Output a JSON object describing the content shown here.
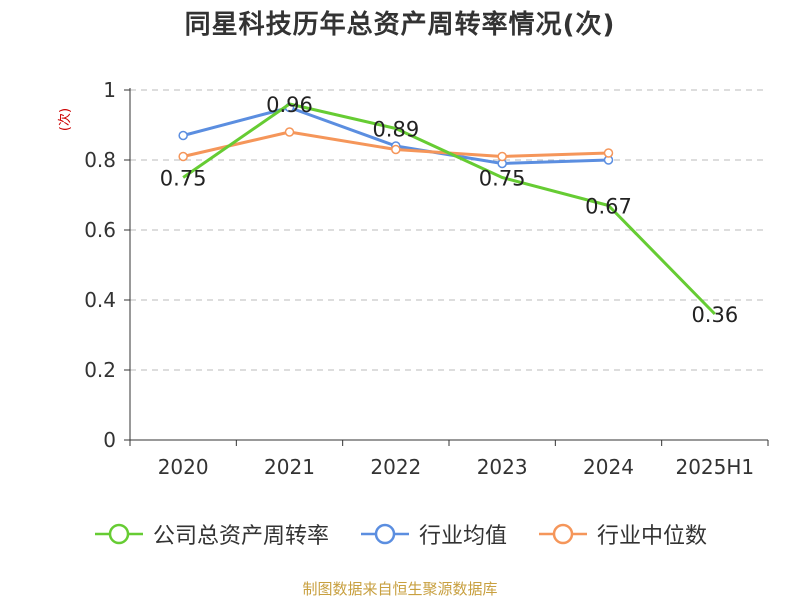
{
  "title": "同星科技历年总资产周转率情况(次)",
  "y_unit": "(次)",
  "source": "制图数据来自恒生聚源数据库",
  "chart_data": {
    "type": "line",
    "categories": [
      "2020",
      "2021",
      "2022",
      "2023",
      "2024",
      "2025H1"
    ],
    "ylim": [
      0,
      1
    ],
    "yticks": [
      0,
      0.2,
      0.4,
      0.6,
      0.8,
      1
    ],
    "ytick_labels": [
      "0",
      "0.2",
      "0.4",
      "0.6",
      "0.8",
      "1"
    ],
    "grid": true,
    "legend_placement": "bottom",
    "series": [
      {
        "name": "公司总资产周转率",
        "color": "#66cc33",
        "values": [
          0.75,
          0.96,
          0.89,
          0.75,
          0.67,
          0.36
        ],
        "data_labels": [
          "0.75",
          "0.96",
          "0.89",
          "0.75",
          "0.67",
          "0.36"
        ]
      },
      {
        "name": "行业均值",
        "color": "#5b8ee0",
        "values": [
          0.87,
          0.95,
          0.84,
          0.79,
          0.8,
          null
        ]
      },
      {
        "name": "行业中位数",
        "color": "#f5965a",
        "values": [
          0.81,
          0.88,
          0.83,
          0.81,
          0.82,
          null
        ]
      }
    ]
  }
}
